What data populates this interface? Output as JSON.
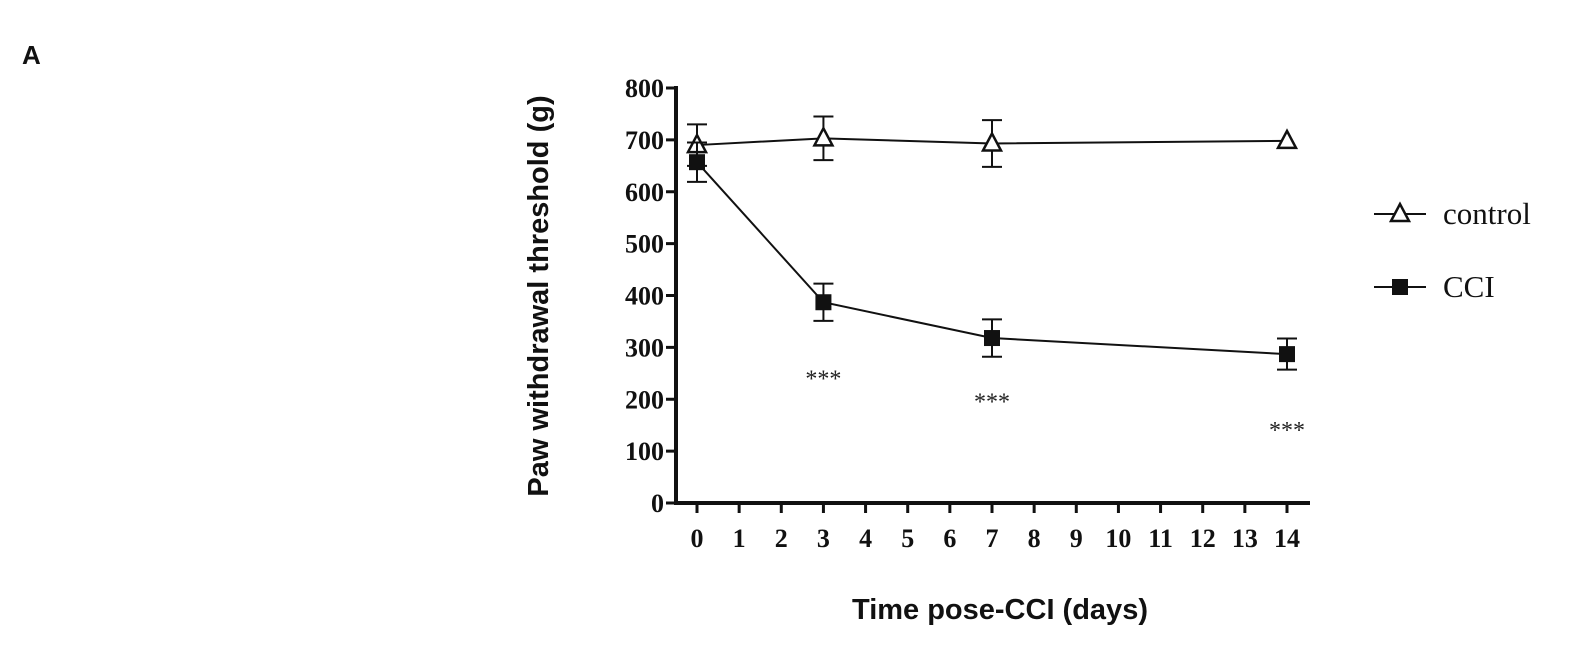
{
  "panel_label": "A",
  "chart_data": {
    "type": "line",
    "title": "",
    "xlabel": "Time pose-CCI (days)",
    "ylabel": "Paw withdrawal threshold (g)",
    "xlim": [
      0,
      14
    ],
    "ylim": [
      0,
      800
    ],
    "x_ticks": [
      0,
      1,
      2,
      3,
      4,
      5,
      6,
      7,
      8,
      9,
      10,
      11,
      12,
      13,
      14
    ],
    "y_ticks": [
      0,
      100,
      200,
      300,
      400,
      500,
      600,
      700,
      800
    ],
    "grid": false,
    "legend_position": "right",
    "series": [
      {
        "name": "control",
        "marker": "open-triangle",
        "x": [
          0,
          3,
          7,
          14
        ],
        "values": [
          690,
          703,
          693,
          698
        ],
        "errors": [
          40,
          42,
          45,
          0
        ]
      },
      {
        "name": "CCI",
        "marker": "filled-square",
        "x": [
          0,
          3,
          7,
          14
        ],
        "values": [
          657,
          387,
          318,
          287
        ],
        "errors": [
          38,
          36,
          36,
          30
        ]
      }
    ],
    "annotations": [
      {
        "text": "***",
        "x": 3,
        "y": 225
      },
      {
        "text": "***",
        "x": 7,
        "y": 180
      },
      {
        "text": "***",
        "x": 14,
        "y": 125
      }
    ]
  }
}
